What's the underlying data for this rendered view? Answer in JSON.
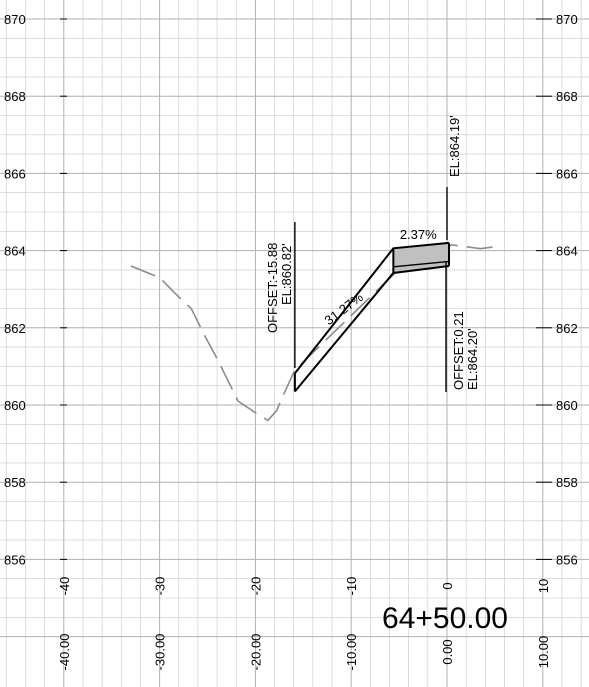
{
  "chart_data": {
    "type": "line",
    "title": "",
    "station_label": "64+50.00",
    "xlabel": "",
    "ylabel": "",
    "xlim": [
      -44.5,
      10.5
    ],
    "ylim": [
      855.2,
      870.4
    ],
    "grid": true,
    "y_ticks": [
      "856",
      "858",
      "860",
      "862",
      "864",
      "866",
      "868",
      "870"
    ],
    "y_tick_values": [
      856,
      858,
      860,
      862,
      864,
      866,
      868,
      870
    ],
    "x_ticks_top": [
      "-40",
      "-30",
      "-20",
      "-10",
      "0",
      "10"
    ],
    "x_ticks_bottom": [
      "-40.00",
      "-30.00",
      "-20.00",
      "-10.00",
      "0.00",
      "10.00"
    ],
    "x_tick_values": [
      -40,
      -30,
      -20,
      -10,
      0,
      10
    ],
    "series": [
      {
        "role": "existing-ground",
        "color": "#8c8c8c",
        "style": "dashed",
        "points": [
          [
            -33.0,
            863.6
          ],
          [
            -30.0,
            863.3
          ],
          [
            -28.0,
            862.8
          ],
          [
            -26.7,
            862.5
          ],
          [
            -25.3,
            861.8
          ],
          [
            -24.0,
            861.2
          ],
          [
            -21.8,
            860.1
          ],
          [
            -20.0,
            859.8
          ],
          [
            -18.7,
            859.6
          ],
          [
            -17.8,
            859.85
          ],
          [
            -17.0,
            860.3
          ],
          [
            -15.9,
            860.9
          ],
          [
            -5.5,
            863.4
          ],
          [
            0.5,
            864.15
          ],
          [
            2.0,
            864.1
          ],
          [
            3.5,
            864.05
          ],
          [
            5.0,
            864.1
          ]
        ]
      }
    ],
    "proposed_section": {
      "color": "#000000",
      "top_line": [
        [
          -15.88,
          860.82
        ],
        [
          -5.6,
          864.06
        ],
        [
          0.21,
          864.2
        ]
      ],
      "bottom_line": [
        [
          -15.88,
          860.35
        ],
        [
          -5.6,
          863.42
        ],
        [
          0.21,
          863.6
        ]
      ],
      "pavement_box": [
        [
          -5.6,
          864.06
        ],
        [
          0.21,
          864.2
        ],
        [
          0.21,
          863.6
        ],
        [
          -5.6,
          863.42
        ]
      ],
      "pavement_inner_line": [
        [
          -5.6,
          863.58
        ],
        [
          0.21,
          863.72
        ]
      ],
      "left_edge_x": -15.88,
      "right_edge_x": 0.21
    },
    "slope_labels": [
      "31.27%",
      "2.37%"
    ],
    "slope_positions": [
      [
        -10.5,
        862.4
      ],
      [
        -3.0,
        864.3
      ]
    ],
    "annotations": [
      {
        "id": "left-offset",
        "offset": "OFFSET:-15.88",
        "elevation": "EL:860.82'",
        "x": -15.88
      },
      {
        "id": "right-offset",
        "offset": "OFFSET:0.21",
        "elevation": "EL:864.20'",
        "x": 0.21
      },
      {
        "id": "centerline",
        "elevation": "EL:864.19'",
        "x": 0.0
      }
    ],
    "colors": {
      "grid": "#c8c8c8",
      "ground": "#8c8c8c",
      "proposed": "#000000",
      "pavement_fill": "#c0c0c0"
    }
  }
}
